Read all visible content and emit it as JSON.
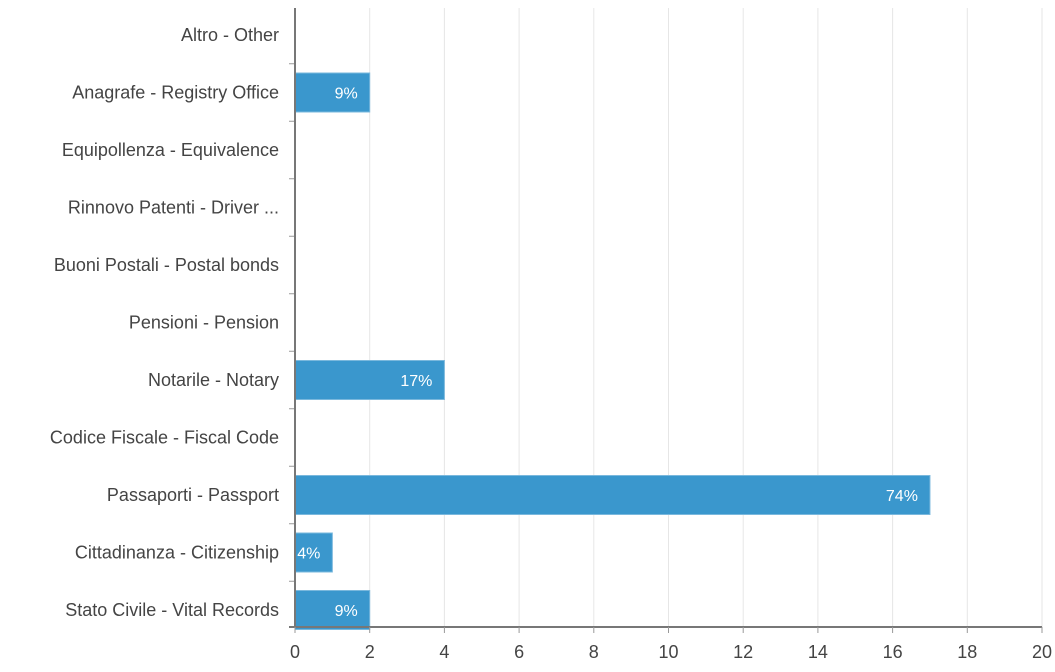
{
  "chart_data": {
    "type": "bar",
    "orientation": "horizontal",
    "categories": [
      "Altro - Other",
      "Anagrafe - Registry Office",
      "Equipollenza - Equivalence",
      "Rinnovo Patenti - Driver ...",
      "Buoni Postali - Postal bonds",
      "Pensioni - Pension",
      "Notarile - Notary",
      "Codice Fiscale - Fiscal Code",
      "Passaporti - Passport",
      "Cittadinanza - Citizenship",
      "Stato Civile - Vital Records"
    ],
    "values": [
      0,
      2,
      0,
      0,
      0,
      0,
      4,
      0,
      17,
      1,
      2
    ],
    "data_labels": [
      "",
      "9%",
      "",
      "",
      "",
      "",
      "17%",
      "",
      "74%",
      "4%",
      "9%"
    ],
    "xlim": [
      0,
      20
    ],
    "xticks": [
      0,
      2,
      4,
      6,
      8,
      10,
      12,
      14,
      16,
      18,
      20
    ],
    "grid": true,
    "bar_color": "#3a97cd",
    "title": "",
    "xlabel": "",
    "ylabel": ""
  }
}
